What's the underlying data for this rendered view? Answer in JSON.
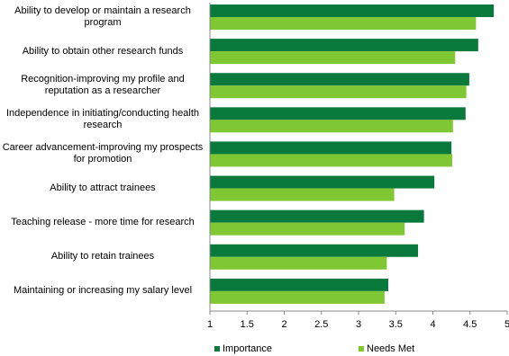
{
  "chart_data": {
    "type": "hbar",
    "categories": [
      "Ability to develop or maintain a research program",
      "Ability to obtain other research funds",
      "Recognition-improving my profile and reputation as a researcher",
      "Independence in initiating/conducting health research",
      "Career advancement-improving my prospects for promotion",
      "Ability to attract trainees",
      "Teaching release - more time for research",
      "Ability to retain trainees",
      "Maintaining or increasing my   salary level"
    ],
    "series": [
      {
        "name": "Importance",
        "color": "#0a7a3c",
        "values": [
          4.82,
          4.61,
          4.49,
          4.44,
          4.25,
          4.02,
          3.88,
          3.8,
          3.4
        ]
      },
      {
        "name": "Needs Met",
        "color": "#7fc733",
        "values": [
          4.58,
          4.3,
          4.45,
          4.27,
          4.26,
          3.48,
          3.62,
          3.38,
          3.35
        ]
      }
    ],
    "xlim": [
      1,
      5
    ],
    "xticks": [
      1,
      1.5,
      2,
      2.5,
      3,
      3.5,
      4,
      4.5,
      5
    ],
    "legend": "bottom"
  }
}
